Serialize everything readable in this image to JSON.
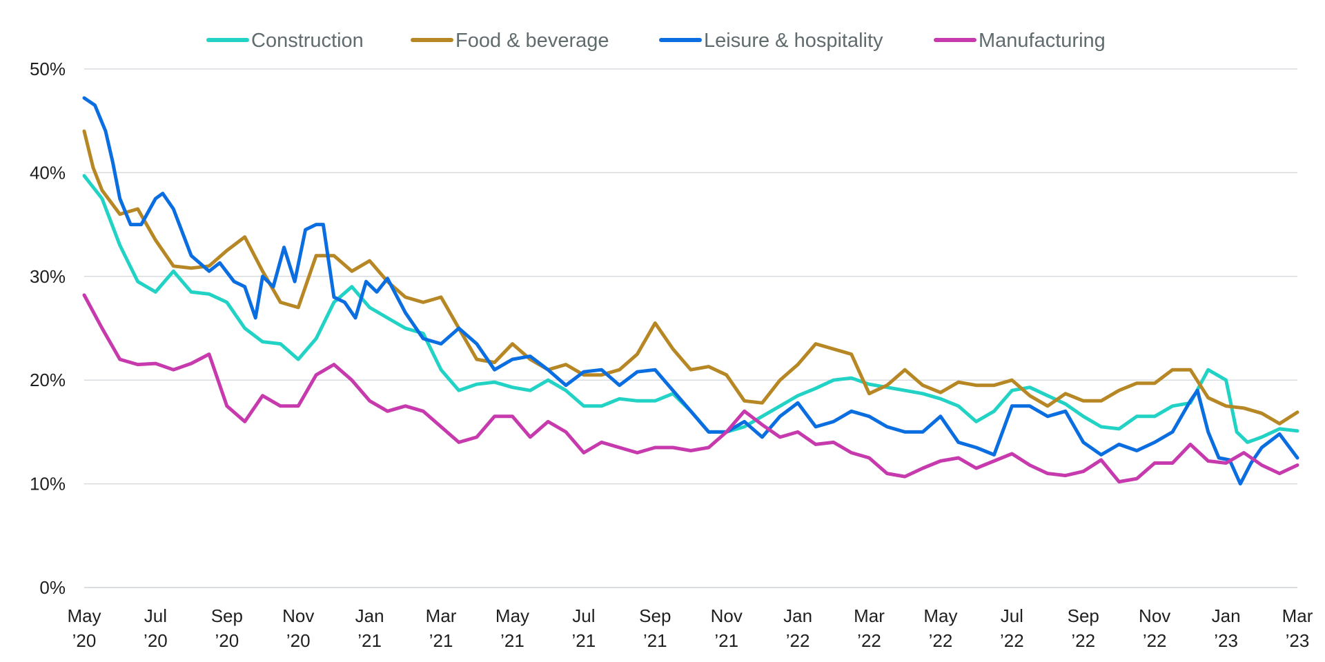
{
  "chart_data": {
    "type": "line",
    "title": "",
    "xlabel": "",
    "ylabel": "",
    "ylim": [
      0,
      50
    ],
    "y_ticks": [
      0,
      10,
      20,
      30,
      40,
      50
    ],
    "y_tick_labels": [
      "0%",
      "10%",
      "20%",
      "30%",
      "40%",
      "50%"
    ],
    "x_ticks": [
      {
        "month": "May",
        "year": "’20",
        "x": 0
      },
      {
        "month": "Jul",
        "year": "’20",
        "x": 2
      },
      {
        "month": "Sep",
        "year": "’20",
        "x": 4
      },
      {
        "month": "Nov",
        "year": "’20",
        "x": 6
      },
      {
        "month": "Jan",
        "year": "’21",
        "x": 8
      },
      {
        "month": "Mar",
        "year": "’21",
        "x": 10
      },
      {
        "month": "May",
        "year": "’21",
        "x": 12
      },
      {
        "month": "Jul",
        "year": "’21",
        "x": 14
      },
      {
        "month": "Sep",
        "year": "’21",
        "x": 16
      },
      {
        "month": "Nov",
        "year": "’21",
        "x": 18
      },
      {
        "month": "Jan",
        "year": "’22",
        "x": 20
      },
      {
        "month": "Mar",
        "year": "’22",
        "x": 22
      },
      {
        "month": "May",
        "year": "’22",
        "x": 24
      },
      {
        "month": "Jul",
        "year": "’22",
        "x": 26
      },
      {
        "month": "Sep",
        "year": "’22",
        "x": 28
      },
      {
        "month": "Nov",
        "year": "’22",
        "x": 30
      },
      {
        "month": "Jan",
        "year": "’23",
        "x": 32
      },
      {
        "month": "Mar",
        "year": "’23",
        "x": 34
      }
    ],
    "xlim": [
      0,
      34
    ],
    "grid": "horizontal",
    "legend_position": "top-center",
    "series": [
      {
        "name": "Construction",
        "color": "#22d3c5",
        "points": [
          [
            0,
            39.7
          ],
          [
            0.5,
            37.5
          ],
          [
            1,
            33
          ],
          [
            1.5,
            29.5
          ],
          [
            2,
            28.5
          ],
          [
            2.5,
            30.5
          ],
          [
            3,
            28.5
          ],
          [
            3.5,
            28.3
          ],
          [
            4,
            27.5
          ],
          [
            4.5,
            25
          ],
          [
            5,
            23.7
          ],
          [
            5.5,
            23.5
          ],
          [
            6,
            22
          ],
          [
            6.5,
            24
          ],
          [
            7,
            27.5
          ],
          [
            7.5,
            29
          ],
          [
            8,
            27
          ],
          [
            8.5,
            26
          ],
          [
            9,
            25
          ],
          [
            9.5,
            24.5
          ],
          [
            10,
            21
          ],
          [
            10.5,
            19
          ],
          [
            11,
            19.6
          ],
          [
            11.5,
            19.8
          ],
          [
            12,
            19.3
          ],
          [
            12.5,
            19
          ],
          [
            13,
            20
          ],
          [
            13.5,
            19
          ],
          [
            14,
            17.5
          ],
          [
            14.5,
            17.5
          ],
          [
            15,
            18.2
          ],
          [
            15.5,
            18
          ],
          [
            16,
            18
          ],
          [
            16.5,
            18.7
          ],
          [
            17,
            17
          ],
          [
            17.5,
            15
          ],
          [
            18,
            15
          ],
          [
            18.5,
            15.5
          ],
          [
            19,
            16.5
          ],
          [
            19.5,
            17.5
          ],
          [
            20,
            18.5
          ],
          [
            20.5,
            19.2
          ],
          [
            21,
            20
          ],
          [
            21.5,
            20.2
          ],
          [
            22,
            19.6
          ],
          [
            22.5,
            19.3
          ],
          [
            23,
            19
          ],
          [
            23.5,
            18.7
          ],
          [
            24,
            18.2
          ],
          [
            24.5,
            17.5
          ],
          [
            25,
            16
          ],
          [
            25.5,
            17
          ],
          [
            26,
            19
          ],
          [
            26.5,
            19.3
          ],
          [
            27,
            18.5
          ],
          [
            27.5,
            17.7
          ],
          [
            28,
            16.5
          ],
          [
            28.5,
            15.5
          ],
          [
            29,
            15.3
          ],
          [
            29.5,
            16.5
          ],
          [
            30,
            16.5
          ],
          [
            30.5,
            17.5
          ],
          [
            31,
            17.8
          ],
          [
            31.5,
            21
          ],
          [
            32,
            20
          ],
          [
            32.3,
            15
          ],
          [
            32.6,
            14
          ],
          [
            33,
            14.5
          ],
          [
            33.5,
            15.3
          ],
          [
            34,
            15.1
          ]
        ]
      },
      {
        "name": "Food & beverage",
        "color": "#b68724",
        "points": [
          [
            0,
            44
          ],
          [
            0.25,
            40.5
          ],
          [
            0.5,
            38.3
          ],
          [
            1,
            36
          ],
          [
            1.5,
            36.5
          ],
          [
            2,
            33.5
          ],
          [
            2.5,
            31
          ],
          [
            3,
            30.8
          ],
          [
            3.5,
            31
          ],
          [
            4,
            32.5
          ],
          [
            4.5,
            33.8
          ],
          [
            5,
            30.5
          ],
          [
            5.5,
            27.5
          ],
          [
            6,
            27
          ],
          [
            6.5,
            32
          ],
          [
            7,
            32
          ],
          [
            7.5,
            30.5
          ],
          [
            8,
            31.5
          ],
          [
            8.5,
            29.5
          ],
          [
            9,
            28
          ],
          [
            9.5,
            27.5
          ],
          [
            10,
            28
          ],
          [
            10.5,
            25
          ],
          [
            11,
            22
          ],
          [
            11.5,
            21.7
          ],
          [
            12,
            23.5
          ],
          [
            12.5,
            22
          ],
          [
            13,
            21
          ],
          [
            13.5,
            21.5
          ],
          [
            14,
            20.5
          ],
          [
            14.5,
            20.5
          ],
          [
            15,
            21
          ],
          [
            15.5,
            22.5
          ],
          [
            16,
            25.5
          ],
          [
            16.5,
            23
          ],
          [
            17,
            21
          ],
          [
            17.5,
            21.3
          ],
          [
            18,
            20.5
          ],
          [
            18.5,
            18
          ],
          [
            19,
            17.8
          ],
          [
            19.5,
            20
          ],
          [
            20,
            21.5
          ],
          [
            20.5,
            23.5
          ],
          [
            21,
            23
          ],
          [
            21.5,
            22.5
          ],
          [
            22,
            18.7
          ],
          [
            22.5,
            19.5
          ],
          [
            23,
            21
          ],
          [
            23.5,
            19.5
          ],
          [
            24,
            18.8
          ],
          [
            24.5,
            19.8
          ],
          [
            25,
            19.5
          ],
          [
            25.5,
            19.5
          ],
          [
            26,
            20
          ],
          [
            26.5,
            18.5
          ],
          [
            27,
            17.5
          ],
          [
            27.5,
            18.7
          ],
          [
            28,
            18
          ],
          [
            28.5,
            18
          ],
          [
            29,
            19
          ],
          [
            29.5,
            19.7
          ],
          [
            30,
            19.7
          ],
          [
            30.5,
            21
          ],
          [
            31,
            21
          ],
          [
            31.5,
            18.3
          ],
          [
            32,
            17.5
          ],
          [
            32.5,
            17.3
          ],
          [
            33,
            16.8
          ],
          [
            33.5,
            15.8
          ],
          [
            34,
            16.9
          ]
        ]
      },
      {
        "name": "Leisure & hospitality",
        "color": "#0a6de0",
        "points": [
          [
            0,
            47.2
          ],
          [
            0.3,
            46.5
          ],
          [
            0.6,
            44
          ],
          [
            0.8,
            41
          ],
          [
            1,
            37.5
          ],
          [
            1.3,
            35
          ],
          [
            1.6,
            35
          ],
          [
            2,
            37.5
          ],
          [
            2.2,
            38
          ],
          [
            2.5,
            36.5
          ],
          [
            3,
            32
          ],
          [
            3.5,
            30.5
          ],
          [
            3.8,
            31.3
          ],
          [
            4.2,
            29.5
          ],
          [
            4.5,
            29
          ],
          [
            4.8,
            26
          ],
          [
            5,
            30
          ],
          [
            5.3,
            29
          ],
          [
            5.6,
            32.8
          ],
          [
            5.9,
            29.5
          ],
          [
            6.2,
            34.5
          ],
          [
            6.5,
            35
          ],
          [
            6.7,
            35
          ],
          [
            7,
            28
          ],
          [
            7.3,
            27.5
          ],
          [
            7.6,
            26
          ],
          [
            7.9,
            29.5
          ],
          [
            8.2,
            28.5
          ],
          [
            8.5,
            29.8
          ],
          [
            9,
            26.5
          ],
          [
            9.5,
            24
          ],
          [
            10,
            23.5
          ],
          [
            10.5,
            25
          ],
          [
            11,
            23.5
          ],
          [
            11.5,
            21
          ],
          [
            12,
            22
          ],
          [
            12.5,
            22.3
          ],
          [
            13,
            21
          ],
          [
            13.5,
            19.5
          ],
          [
            14,
            20.8
          ],
          [
            14.5,
            21
          ],
          [
            15,
            19.5
          ],
          [
            15.5,
            20.8
          ],
          [
            16,
            21
          ],
          [
            16.5,
            19
          ],
          [
            17,
            17
          ],
          [
            17.5,
            15
          ],
          [
            18,
            15
          ],
          [
            18.5,
            16
          ],
          [
            19,
            14.5
          ],
          [
            19.5,
            16.5
          ],
          [
            20,
            17.8
          ],
          [
            20.5,
            15.5
          ],
          [
            21,
            16
          ],
          [
            21.5,
            17
          ],
          [
            22,
            16.5
          ],
          [
            22.5,
            15.5
          ],
          [
            23,
            15
          ],
          [
            23.5,
            15
          ],
          [
            24,
            16.5
          ],
          [
            24.5,
            14
          ],
          [
            25,
            13.5
          ],
          [
            25.5,
            12.8
          ],
          [
            26,
            17.5
          ],
          [
            26.5,
            17.5
          ],
          [
            27,
            16.5
          ],
          [
            27.5,
            17
          ],
          [
            28,
            14
          ],
          [
            28.5,
            12.8
          ],
          [
            29,
            13.8
          ],
          [
            29.5,
            13.2
          ],
          [
            30,
            14
          ],
          [
            30.5,
            15
          ],
          [
            31,
            18
          ],
          [
            31.2,
            19
          ],
          [
            31.5,
            15
          ],
          [
            31.8,
            12.5
          ],
          [
            32.1,
            12.3
          ],
          [
            32.4,
            10
          ],
          [
            32.7,
            12
          ],
          [
            33,
            13.5
          ],
          [
            33.5,
            14.8
          ],
          [
            34,
            12.5
          ]
        ]
      },
      {
        "name": "Manufacturing",
        "color": "#c63aad",
        "points": [
          [
            0,
            28.2
          ],
          [
            0.5,
            25
          ],
          [
            1,
            22
          ],
          [
            1.5,
            21.5
          ],
          [
            2,
            21.6
          ],
          [
            2.5,
            21
          ],
          [
            3,
            21.6
          ],
          [
            3.5,
            22.5
          ],
          [
            4,
            17.5
          ],
          [
            4.5,
            16
          ],
          [
            5,
            18.5
          ],
          [
            5.5,
            17.5
          ],
          [
            6,
            17.5
          ],
          [
            6.5,
            20.5
          ],
          [
            7,
            21.5
          ],
          [
            7.5,
            20
          ],
          [
            8,
            18
          ],
          [
            8.5,
            17
          ],
          [
            9,
            17.5
          ],
          [
            9.5,
            17
          ],
          [
            10,
            15.5
          ],
          [
            10.5,
            14
          ],
          [
            11,
            14.5
          ],
          [
            11.5,
            16.5
          ],
          [
            12,
            16.5
          ],
          [
            12.5,
            14.5
          ],
          [
            13,
            16
          ],
          [
            13.5,
            15
          ],
          [
            14,
            13
          ],
          [
            14.5,
            14
          ],
          [
            15,
            13.5
          ],
          [
            15.5,
            13
          ],
          [
            16,
            13.5
          ],
          [
            16.5,
            13.5
          ],
          [
            17,
            13.2
          ],
          [
            17.5,
            13.5
          ],
          [
            18,
            15
          ],
          [
            18.5,
            17
          ],
          [
            19,
            15.7
          ],
          [
            19.5,
            14.5
          ],
          [
            20,
            15
          ],
          [
            20.5,
            13.8
          ],
          [
            21,
            14
          ],
          [
            21.5,
            13
          ],
          [
            22,
            12.5
          ],
          [
            22.5,
            11
          ],
          [
            23,
            10.7
          ],
          [
            23.5,
            11.5
          ],
          [
            24,
            12.2
          ],
          [
            24.5,
            12.5
          ],
          [
            25,
            11.5
          ],
          [
            25.5,
            12.2
          ],
          [
            26,
            12.9
          ],
          [
            26.5,
            11.8
          ],
          [
            27,
            11
          ],
          [
            27.5,
            10.8
          ],
          [
            28,
            11.2
          ],
          [
            28.5,
            12.3
          ],
          [
            29,
            10.2
          ],
          [
            29.5,
            10.5
          ],
          [
            30,
            12
          ],
          [
            30.5,
            12
          ],
          [
            31,
            13.8
          ],
          [
            31.5,
            12.2
          ],
          [
            32,
            12
          ],
          [
            32.5,
            13
          ],
          [
            33,
            11.8
          ],
          [
            33.5,
            11
          ],
          [
            34,
            11.8
          ]
        ]
      }
    ]
  }
}
